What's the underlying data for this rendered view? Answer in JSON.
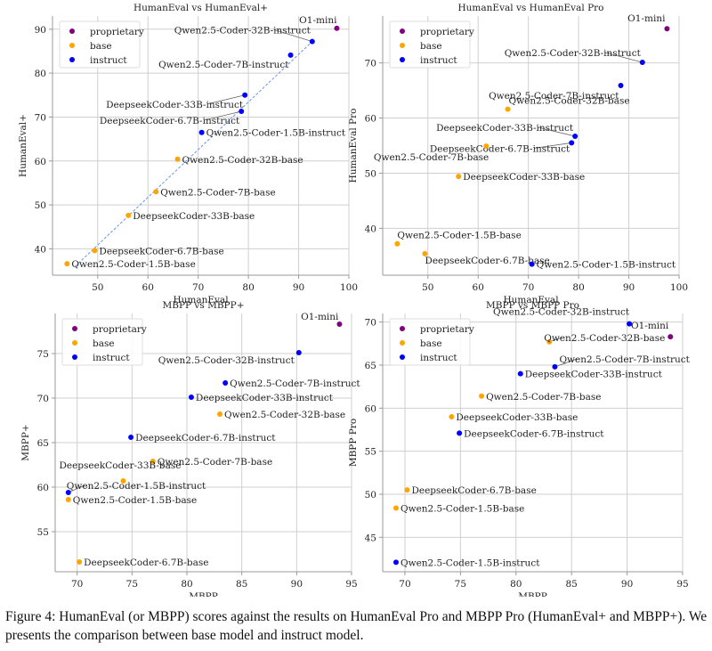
{
  "figure": {
    "caption": "Figure 4: HumanEval (or MBPP) scores against the results on HumanEval Pro and MBPP Pro (HumanEval+ and MBPP+). We presents the comparison between base model and instruct model."
  },
  "legend": [
    {
      "label": "proprietary",
      "color": "#800080"
    },
    {
      "label": "base",
      "color": "#FFA500"
    },
    {
      "label": "instruct",
      "color": "#0000FF"
    }
  ],
  "chart_data": [
    {
      "type": "scatter",
      "title": "HumanEval vs HumanEval+",
      "xlabel": "HumanEval",
      "ylabel": "HumanEval+",
      "xlim": [
        41,
        100
      ],
      "ylim": [
        34,
        93
      ],
      "xticks": [
        50,
        60,
        70,
        80,
        90,
        100
      ],
      "yticks": [
        40,
        50,
        60,
        70,
        80,
        90
      ],
      "grid": true,
      "legend_position": "top-left",
      "trendline": {
        "style": "dashed",
        "color": "#6495ED",
        "from": [
          45.5,
          36
        ],
        "to": [
          92.7,
          87.2
        ]
      },
      "points": [
        {
          "label": "O1-mini",
          "group": "proprietary",
          "x": 97.6,
          "y": 90.2
        },
        {
          "label": "Qwen2.5-Coder-32B-instruct",
          "group": "instruct",
          "x": 92.7,
          "y": 87.2
        },
        {
          "label": "Qwen2.5-Coder-7B-instruct",
          "group": "instruct",
          "x": 88.4,
          "y": 84.1
        },
        {
          "label": "DeepseekCoder-33B-instruct",
          "group": "instruct",
          "x": 79.3,
          "y": 75.0
        },
        {
          "label": "DeepseekCoder-6.7B-instruct",
          "group": "instruct",
          "x": 78.6,
          "y": 71.3
        },
        {
          "label": "Qwen2.5-Coder-1.5B-instruct",
          "group": "instruct",
          "x": 70.7,
          "y": 66.5
        },
        {
          "label": "Qwen2.5-Coder-32B-base",
          "group": "base",
          "x": 65.9,
          "y": 60.4
        },
        {
          "label": "Qwen2.5-Coder-7B-base",
          "group": "base",
          "x": 61.6,
          "y": 53.0
        },
        {
          "label": "DeepseekCoder-33B-base",
          "group": "base",
          "x": 56.1,
          "y": 47.6
        },
        {
          "label": "DeepseekCoder-6.7B-base",
          "group": "base",
          "x": 49.4,
          "y": 39.6
        },
        {
          "label": "Qwen2.5-Coder-1.5B-base",
          "group": "base",
          "x": 43.9,
          "y": 36.6
        }
      ]
    },
    {
      "type": "scatter",
      "title": "HumanEval vs HumanEval Pro",
      "xlabel": "HumanEval",
      "ylabel": "HumanEval Pro",
      "xlim": [
        41,
        100
      ],
      "ylim": [
        31.5,
        78.5
      ],
      "xticks": [
        50,
        60,
        70,
        80,
        90,
        100
      ],
      "yticks": [
        40,
        50,
        60,
        70
      ],
      "grid": true,
      "legend_position": "top-left",
      "points": [
        {
          "label": "O1-mini",
          "group": "proprietary",
          "x": 97.6,
          "y": 76.2
        },
        {
          "label": "Qwen2.5-Coder-32B-instruct",
          "group": "instruct",
          "x": 92.7,
          "y": 70.1
        },
        {
          "label": "Qwen2.5-Coder-7B-instruct",
          "group": "instruct",
          "x": 88.4,
          "y": 65.9
        },
        {
          "label": "Qwen2.5-Coder-32B-base",
          "group": "base",
          "x": 65.9,
          "y": 61.6
        },
        {
          "label": "DeepseekCoder-33B-instruct",
          "group": "instruct",
          "x": 79.3,
          "y": 56.7
        },
        {
          "label": "DeepseekCoder-6.7B-instruct",
          "group": "instruct",
          "x": 78.6,
          "y": 55.5
        },
        {
          "label": "Qwen2.5-Coder-7B-base",
          "group": "base",
          "x": 61.6,
          "y": 54.9
        },
        {
          "label": "DeepseekCoder-33B-base",
          "group": "base",
          "x": 56.1,
          "y": 49.4
        },
        {
          "label": "Qwen2.5-Coder-1.5B-base",
          "group": "base",
          "x": 43.9,
          "y": 37.2
        },
        {
          "label": "DeepseekCoder-6.7B-base",
          "group": "base",
          "x": 49.4,
          "y": 35.4
        },
        {
          "label": "Qwen2.5-Coder-1.5B-instruct",
          "group": "instruct",
          "x": 70.7,
          "y": 33.5
        }
      ]
    },
    {
      "type": "scatter",
      "title": "MBPP vs MBPP+",
      "xlabel": "MBPP",
      "ylabel": "MBPP+",
      "xlim": [
        68,
        95
      ],
      "ylim": [
        50.5,
        79.5
      ],
      "xticks": [
        70,
        75,
        80,
        85,
        90,
        95
      ],
      "yticks": [
        55,
        60,
        65,
        70,
        75
      ],
      "grid": true,
      "legend_position": "top-left",
      "points": [
        {
          "label": "O1-mini",
          "group": "proprietary",
          "x": 93.9,
          "y": 78.3
        },
        {
          "label": "Qwen2.5-Coder-32B-instruct",
          "group": "instruct",
          "x": 90.2,
          "y": 75.1
        },
        {
          "label": "Qwen2.5-Coder-7B-instruct",
          "group": "instruct",
          "x": 83.5,
          "y": 71.7
        },
        {
          "label": "DeepseekCoder-33B-instruct",
          "group": "instruct",
          "x": 80.4,
          "y": 70.1
        },
        {
          "label": "Qwen2.5-Coder-32B-base",
          "group": "base",
          "x": 83.0,
          "y": 68.2
        },
        {
          "label": "DeepseekCoder-6.7B-instruct",
          "group": "instruct",
          "x": 74.9,
          "y": 65.6
        },
        {
          "label": "Qwen2.5-Coder-7B-base",
          "group": "base",
          "x": 76.9,
          "y": 62.9
        },
        {
          "label": "DeepseekCoder-33B-base",
          "group": "base",
          "x": 74.2,
          "y": 60.7
        },
        {
          "label": "Qwen2.5-Coder-1.5B-instruct",
          "group": "instruct",
          "x": 69.2,
          "y": 59.4
        },
        {
          "label": "Qwen2.5-Coder-1.5B-base",
          "group": "base",
          "x": 69.2,
          "y": 58.6
        },
        {
          "label": "DeepseekCoder-6.7B-base",
          "group": "base",
          "x": 70.2,
          "y": 51.6
        }
      ]
    },
    {
      "type": "scatter",
      "title": "MBPP vs MBPP Pro",
      "xlabel": "MBPP",
      "ylabel": "MBPP Pro",
      "xlim": [
        68,
        95
      ],
      "ylim": [
        41,
        71
      ],
      "xticks": [
        70,
        75,
        80,
        85,
        90,
        95
      ],
      "yticks": [
        45,
        50,
        55,
        60,
        65,
        70
      ],
      "grid": true,
      "legend_position": "top-left",
      "points": [
        {
          "label": "Qwen2.5-Coder-32B-instruct",
          "group": "instruct",
          "x": 90.2,
          "y": 69.8
        },
        {
          "label": "O1-mini",
          "group": "proprietary",
          "x": 93.9,
          "y": 68.3
        },
        {
          "label": "Qwen2.5-Coder-32B-base",
          "group": "base",
          "x": 83.0,
          "y": 67.7
        },
        {
          "label": "Qwen2.5-Coder-7B-instruct",
          "group": "instruct",
          "x": 83.5,
          "y": 64.8
        },
        {
          "label": "DeepseekCoder-33B-instruct",
          "group": "instruct",
          "x": 80.4,
          "y": 64.0
        },
        {
          "label": "Qwen2.5-Coder-7B-base",
          "group": "base",
          "x": 76.9,
          "y": 61.4
        },
        {
          "label": "DeepseekCoder-33B-base",
          "group": "base",
          "x": 74.2,
          "y": 59.0
        },
        {
          "label": "DeepseekCoder-6.7B-instruct",
          "group": "instruct",
          "x": 74.9,
          "y": 57.1
        },
        {
          "label": "DeepseekCoder-6.7B-base",
          "group": "base",
          "x": 70.2,
          "y": 50.5
        },
        {
          "label": "Qwen2.5-Coder-1.5B-base",
          "group": "base",
          "x": 69.2,
          "y": 48.4
        },
        {
          "label": "Qwen2.5-Coder-1.5B-instruct",
          "group": "instruct",
          "x": 69.2,
          "y": 42.1
        }
      ]
    }
  ]
}
